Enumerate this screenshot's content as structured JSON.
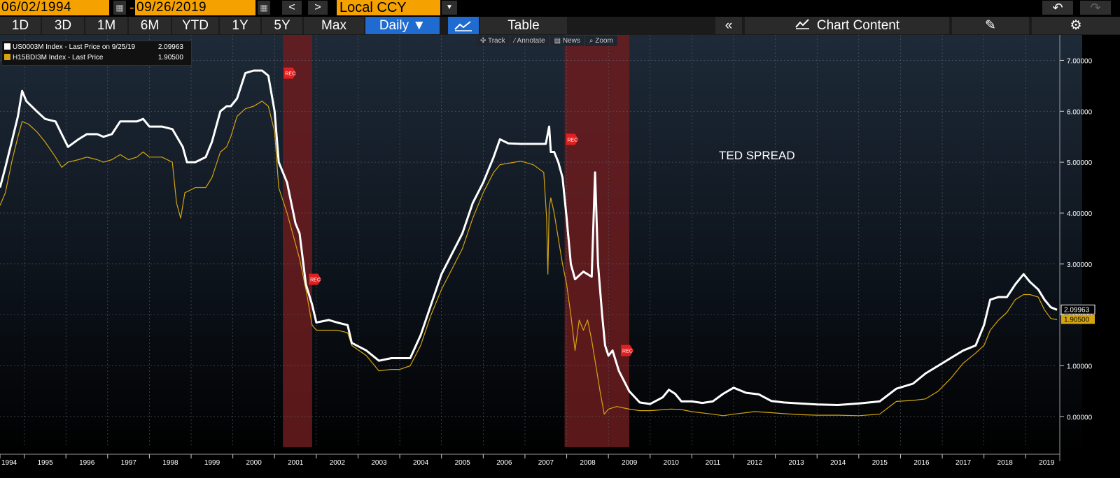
{
  "toolbar": {
    "start_date": "06/02/1994",
    "end_date": "09/26/2019",
    "dash": "-",
    "prev_label": "<",
    "next_label": ">",
    "currency": "Local CCY",
    "undo_label": "↶",
    "redo_label": "↷"
  },
  "rangebar": {
    "ranges": [
      "1D",
      "3D",
      "1M",
      "6M",
      "YTD",
      "1Y",
      "5Y",
      "Max"
    ],
    "frequency": "Daily ▼",
    "table_label": "Table",
    "collapse_label": "«",
    "chart_content_label": "Chart Content"
  },
  "chart_tools": [
    "Track",
    "Annotate",
    "News",
    "Zoom"
  ],
  "legend": [
    {
      "label": "US0003M Index - Last Price on 9/25/19",
      "value": "2.09963",
      "color": "#ffffff"
    },
    {
      "label": "H15BDI3M Index - Last Price",
      "value": "1.90500",
      "color": "#d4a50f"
    }
  ],
  "annotation": "TED SPREAD",
  "recession_marker": "REC",
  "chart_data": {
    "type": "line",
    "title": "TED SPREAD",
    "x_range": [
      1994.42,
      2019.75
    ],
    "ylim": [
      -0.6,
      7.5
    ],
    "y_ticks": [
      "0.00000",
      "1.00000",
      "2.00000",
      "3.00000",
      "4.00000",
      "5.00000",
      "6.00000",
      "7.00000"
    ],
    "y_tick_values": [
      0,
      1,
      2,
      3,
      4,
      5,
      6,
      7
    ],
    "x_ticks": [
      "1994",
      "1995",
      "1996",
      "1997",
      "1998",
      "1999",
      "2000",
      "2001",
      "2002",
      "2003",
      "2004",
      "2005",
      "2006",
      "2007",
      "2008",
      "2009",
      "2010",
      "2011",
      "2012",
      "2013",
      "2014",
      "2015",
      "2016",
      "2017",
      "2018",
      "2019"
    ],
    "grid": true,
    "recessions": [
      [
        2001.2,
        2001.9
      ],
      [
        2007.95,
        2009.5
      ]
    ],
    "last_labels": [
      {
        "value": "2.09963",
        "y": 2.09963,
        "color": "#ffffff"
      },
      {
        "value": "1.90500",
        "y": 1.905,
        "color": "#d4a50f"
      }
    ],
    "series": [
      {
        "name": "US0003M Index",
        "color": "#ffffff",
        "points": [
          [
            1994.42,
            4.5
          ],
          [
            1994.55,
            4.9
          ],
          [
            1994.7,
            5.4
          ],
          [
            1994.85,
            5.9
          ],
          [
            1994.95,
            6.4
          ],
          [
            1995.05,
            6.2
          ],
          [
            1995.3,
            6.0
          ],
          [
            1995.5,
            5.85
          ],
          [
            1995.75,
            5.8
          ],
          [
            1995.9,
            5.55
          ],
          [
            1996.05,
            5.3
          ],
          [
            1996.3,
            5.45
          ],
          [
            1996.5,
            5.55
          ],
          [
            1996.75,
            5.55
          ],
          [
            1996.9,
            5.5
          ],
          [
            1997.1,
            5.55
          ],
          [
            1997.3,
            5.8
          ],
          [
            1997.5,
            5.8
          ],
          [
            1997.7,
            5.8
          ],
          [
            1997.85,
            5.85
          ],
          [
            1998.0,
            5.7
          ],
          [
            1998.3,
            5.7
          ],
          [
            1998.55,
            5.65
          ],
          [
            1998.8,
            5.3
          ],
          [
            1998.9,
            5.0
          ],
          [
            1999.1,
            5.0
          ],
          [
            1999.35,
            5.1
          ],
          [
            1999.5,
            5.4
          ],
          [
            1999.7,
            6.0
          ],
          [
            1999.85,
            6.1
          ],
          [
            1999.95,
            6.1
          ],
          [
            2000.1,
            6.25
          ],
          [
            2000.3,
            6.75
          ],
          [
            2000.5,
            6.8
          ],
          [
            2000.7,
            6.8
          ],
          [
            2000.85,
            6.7
          ],
          [
            2001.0,
            6.0
          ],
          [
            2001.1,
            5.0
          ],
          [
            2001.3,
            4.6
          ],
          [
            2001.5,
            3.8
          ],
          [
            2001.6,
            3.6
          ],
          [
            2001.75,
            2.6
          ],
          [
            2001.9,
            2.2
          ],
          [
            2002.0,
            1.85
          ],
          [
            2002.3,
            1.9
          ],
          [
            2002.5,
            1.85
          ],
          [
            2002.75,
            1.8
          ],
          [
            2002.85,
            1.45
          ],
          [
            2003.2,
            1.3
          ],
          [
            2003.5,
            1.1
          ],
          [
            2003.8,
            1.15
          ],
          [
            2004.0,
            1.15
          ],
          [
            2004.25,
            1.15
          ],
          [
            2004.5,
            1.6
          ],
          [
            2004.75,
            2.2
          ],
          [
            2005.0,
            2.8
          ],
          [
            2005.25,
            3.2
          ],
          [
            2005.5,
            3.6
          ],
          [
            2005.75,
            4.2
          ],
          [
            2006.0,
            4.6
          ],
          [
            2006.25,
            5.1
          ],
          [
            2006.4,
            5.45
          ],
          [
            2006.6,
            5.37
          ],
          [
            2006.9,
            5.36
          ],
          [
            2007.2,
            5.36
          ],
          [
            2007.5,
            5.36
          ],
          [
            2007.58,
            5.7
          ],
          [
            2007.62,
            5.2
          ],
          [
            2007.7,
            5.2
          ],
          [
            2007.8,
            5.0
          ],
          [
            2007.9,
            4.7
          ],
          [
            2008.0,
            3.9
          ],
          [
            2008.1,
            3.0
          ],
          [
            2008.2,
            2.7
          ],
          [
            2008.4,
            2.85
          ],
          [
            2008.6,
            2.75
          ],
          [
            2008.68,
            4.8
          ],
          [
            2008.75,
            3.0
          ],
          [
            2008.85,
            2.0
          ],
          [
            2008.92,
            1.4
          ],
          [
            2009.0,
            1.2
          ],
          [
            2009.1,
            1.3
          ],
          [
            2009.25,
            0.9
          ],
          [
            2009.5,
            0.5
          ],
          [
            2009.75,
            0.28
          ],
          [
            2010.0,
            0.25
          ],
          [
            2010.3,
            0.38
          ],
          [
            2010.45,
            0.53
          ],
          [
            2010.6,
            0.45
          ],
          [
            2010.75,
            0.3
          ],
          [
            2011.0,
            0.3
          ],
          [
            2011.25,
            0.27
          ],
          [
            2011.5,
            0.3
          ],
          [
            2011.75,
            0.45
          ],
          [
            2012.0,
            0.57
          ],
          [
            2012.3,
            0.47
          ],
          [
            2012.6,
            0.44
          ],
          [
            2012.9,
            0.31
          ],
          [
            2013.2,
            0.28
          ],
          [
            2013.6,
            0.26
          ],
          [
            2014.0,
            0.24
          ],
          [
            2014.5,
            0.23
          ],
          [
            2015.0,
            0.26
          ],
          [
            2015.5,
            0.3
          ],
          [
            2015.9,
            0.55
          ],
          [
            2016.3,
            0.65
          ],
          [
            2016.6,
            0.85
          ],
          [
            2016.9,
            1.0
          ],
          [
            2017.2,
            1.15
          ],
          [
            2017.5,
            1.3
          ],
          [
            2017.8,
            1.4
          ],
          [
            2018.0,
            1.8
          ],
          [
            2018.15,
            2.3
          ],
          [
            2018.35,
            2.35
          ],
          [
            2018.55,
            2.35
          ],
          [
            2018.75,
            2.6
          ],
          [
            2018.95,
            2.8
          ],
          [
            2019.1,
            2.65
          ],
          [
            2019.3,
            2.5
          ],
          [
            2019.45,
            2.3
          ],
          [
            2019.6,
            2.15
          ],
          [
            2019.75,
            2.1
          ]
        ]
      },
      {
        "name": "H15BDI3M Index",
        "color": "#d4a50f",
        "points": [
          [
            1994.42,
            4.15
          ],
          [
            1994.55,
            4.4
          ],
          [
            1994.7,
            5.0
          ],
          [
            1994.85,
            5.5
          ],
          [
            1994.95,
            5.8
          ],
          [
            1995.1,
            5.75
          ],
          [
            1995.3,
            5.6
          ],
          [
            1995.5,
            5.4
          ],
          [
            1995.75,
            5.1
          ],
          [
            1995.9,
            4.9
          ],
          [
            1996.05,
            5.0
          ],
          [
            1996.3,
            5.05
          ],
          [
            1996.5,
            5.1
          ],
          [
            1996.75,
            5.05
          ],
          [
            1996.9,
            5.0
          ],
          [
            1997.1,
            5.05
          ],
          [
            1997.3,
            5.15
          ],
          [
            1997.5,
            5.05
          ],
          [
            1997.7,
            5.1
          ],
          [
            1997.85,
            5.2
          ],
          [
            1998.0,
            5.1
          ],
          [
            1998.3,
            5.1
          ],
          [
            1998.55,
            5.0
          ],
          [
            1998.65,
            4.2
          ],
          [
            1998.75,
            3.9
          ],
          [
            1998.85,
            4.4
          ],
          [
            1999.1,
            4.5
          ],
          [
            1999.35,
            4.5
          ],
          [
            1999.5,
            4.7
          ],
          [
            1999.7,
            5.2
          ],
          [
            1999.85,
            5.3
          ],
          [
            1999.95,
            5.5
          ],
          [
            2000.1,
            5.9
          ],
          [
            2000.3,
            6.05
          ],
          [
            2000.5,
            6.1
          ],
          [
            2000.7,
            6.2
          ],
          [
            2000.85,
            6.1
          ],
          [
            2001.0,
            5.6
          ],
          [
            2001.1,
            4.5
          ],
          [
            2001.3,
            4.0
          ],
          [
            2001.5,
            3.4
          ],
          [
            2001.6,
            3.1
          ],
          [
            2001.75,
            2.5
          ],
          [
            2001.9,
            1.8
          ],
          [
            2002.0,
            1.7
          ],
          [
            2002.3,
            1.7
          ],
          [
            2002.5,
            1.7
          ],
          [
            2002.75,
            1.65
          ],
          [
            2002.85,
            1.4
          ],
          [
            2003.2,
            1.2
          ],
          [
            2003.5,
            0.9
          ],
          [
            2003.8,
            0.93
          ],
          [
            2004.0,
            0.93
          ],
          [
            2004.25,
            1.0
          ],
          [
            2004.5,
            1.4
          ],
          [
            2004.75,
            2.0
          ],
          [
            2005.0,
            2.5
          ],
          [
            2005.25,
            2.9
          ],
          [
            2005.5,
            3.3
          ],
          [
            2005.75,
            3.9
          ],
          [
            2006.0,
            4.4
          ],
          [
            2006.25,
            4.8
          ],
          [
            2006.4,
            4.95
          ],
          [
            2006.6,
            4.98
          ],
          [
            2006.9,
            5.02
          ],
          [
            2007.2,
            4.95
          ],
          [
            2007.45,
            4.8
          ],
          [
            2007.52,
            3.9
          ],
          [
            2007.55,
            2.8
          ],
          [
            2007.58,
            4.1
          ],
          [
            2007.62,
            4.3
          ],
          [
            2007.7,
            4.0
          ],
          [
            2007.8,
            3.5
          ],
          [
            2007.9,
            3.0
          ],
          [
            2008.0,
            2.6
          ],
          [
            2008.1,
            2.0
          ],
          [
            2008.2,
            1.3
          ],
          [
            2008.3,
            1.9
          ],
          [
            2008.4,
            1.7
          ],
          [
            2008.5,
            1.9
          ],
          [
            2008.6,
            1.5
          ],
          [
            2008.7,
            1.0
          ],
          [
            2008.8,
            0.5
          ],
          [
            2008.9,
            0.05
          ],
          [
            2009.0,
            0.15
          ],
          [
            2009.2,
            0.2
          ],
          [
            2009.5,
            0.15
          ],
          [
            2009.75,
            0.12
          ],
          [
            2010.0,
            0.12
          ],
          [
            2010.5,
            0.15
          ],
          [
            2010.75,
            0.14
          ],
          [
            2011.0,
            0.1
          ],
          [
            2011.5,
            0.05
          ],
          [
            2011.75,
            0.02
          ],
          [
            2012.0,
            0.05
          ],
          [
            2012.5,
            0.1
          ],
          [
            2012.9,
            0.08
          ],
          [
            2013.2,
            0.06
          ],
          [
            2013.6,
            0.04
          ],
          [
            2014.0,
            0.03
          ],
          [
            2014.5,
            0.03
          ],
          [
            2015.0,
            0.02
          ],
          [
            2015.5,
            0.05
          ],
          [
            2015.9,
            0.3
          ],
          [
            2016.3,
            0.32
          ],
          [
            2016.6,
            0.35
          ],
          [
            2016.9,
            0.5
          ],
          [
            2017.2,
            0.75
          ],
          [
            2017.5,
            1.05
          ],
          [
            2017.8,
            1.25
          ],
          [
            2018.0,
            1.4
          ],
          [
            2018.15,
            1.7
          ],
          [
            2018.35,
            1.9
          ],
          [
            2018.55,
            2.05
          ],
          [
            2018.75,
            2.3
          ],
          [
            2018.95,
            2.4
          ],
          [
            2019.1,
            2.4
          ],
          [
            2019.3,
            2.35
          ],
          [
            2019.45,
            2.1
          ],
          [
            2019.6,
            1.93
          ],
          [
            2019.75,
            1.905
          ]
        ]
      }
    ]
  }
}
